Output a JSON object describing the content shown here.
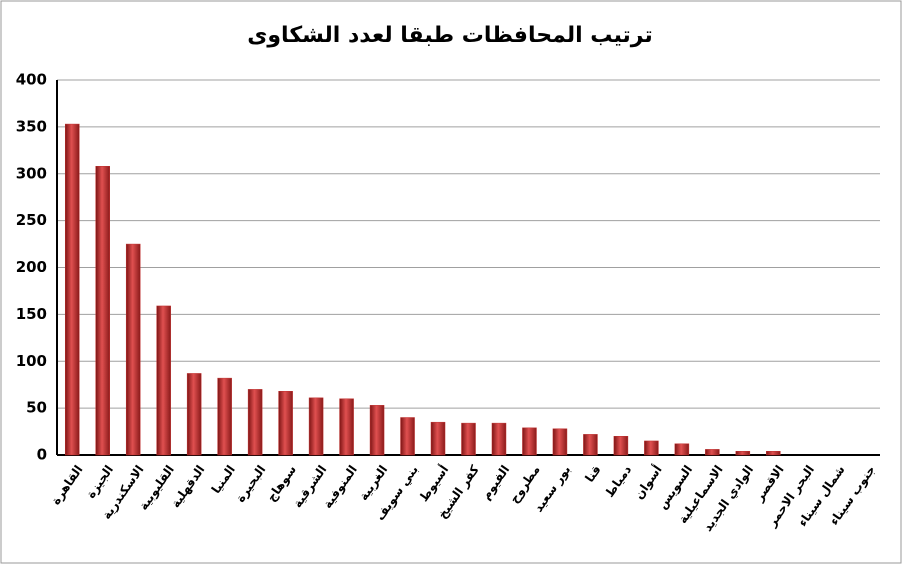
{
  "chart_data": {
    "type": "bar",
    "title": "ترتيب المحافظات طبقا لعدد الشكاوى",
    "categories": [
      "القاهرة",
      "الجيزة",
      "الاسكندرية",
      "القليوبية",
      "الدقهلية",
      "المنيا",
      "البحيرة",
      "سوهاج",
      "الشرقية",
      "المنوفية",
      "الغربية",
      "بني سويف",
      "أسيوط",
      "كفر الشيخ",
      "الفيوم",
      "مطروح",
      "بور سعيد",
      "قنا",
      "دمياط",
      "أسوان",
      "السويس",
      "الاسماعيلية",
      "الوادي الجديد",
      "الاقصر",
      "البحر الاحمر",
      "شمال سيناء",
      "جنوب سيناء"
    ],
    "values": [
      353,
      308,
      225,
      159,
      87,
      82,
      70,
      68,
      61,
      60,
      53,
      40,
      35,
      34,
      34,
      29,
      28,
      22,
      20,
      15,
      12,
      6,
      4,
      4,
      0,
      0,
      0
    ],
    "color": "#c0302f",
    "ylim": [
      0,
      400
    ],
    "yticks": [
      0,
      50,
      100,
      150,
      200,
      250,
      300,
      350,
      400
    ],
    "grid": true
  }
}
